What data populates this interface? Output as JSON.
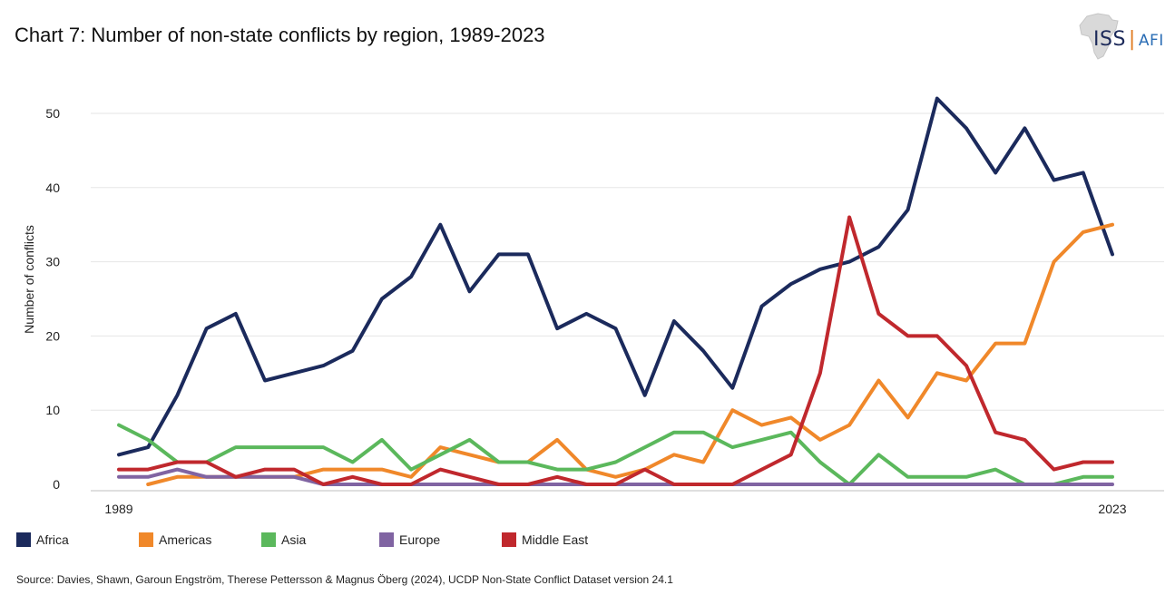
{
  "title": "Chart 7: Number of non-state conflicts by region, 1989-2023",
  "logo": {
    "text_iss": "ISS",
    "separator": "|",
    "text_afi": "AFI",
    "icon": "africa-map-icon"
  },
  "source": "Source:  Davies, Shawn, Garoun Engström, Therese Pettersson & Magnus Öberg (2024), UCDP Non-State Conflict Dataset version 24.1",
  "chart_data": {
    "type": "line",
    "title": "Chart 7: Number of non-state conflicts by region, 1989-2023",
    "xlabel": "",
    "ylabel": "Number of conflicts",
    "x": [
      1989,
      1990,
      1991,
      1992,
      1993,
      1994,
      1995,
      1996,
      1997,
      1998,
      1999,
      2000,
      2001,
      2002,
      2003,
      2004,
      2005,
      2006,
      2007,
      2008,
      2009,
      2010,
      2011,
      2012,
      2013,
      2014,
      2015,
      2016,
      2017,
      2018,
      2019,
      2020,
      2021,
      2022,
      2023
    ],
    "x_tick_labels": [
      "1989",
      "2023"
    ],
    "y_ticks": [
      0,
      10,
      20,
      30,
      40,
      50
    ],
    "ylim": [
      0,
      53
    ],
    "grid": true,
    "legend_position": "bottom",
    "series": [
      {
        "name": "Africa",
        "color": "#1b2a5c",
        "values": [
          4,
          5,
          12,
          21,
          23,
          14,
          15,
          16,
          18,
          25,
          28,
          35,
          26,
          31,
          31,
          21,
          23,
          21,
          12,
          22,
          18,
          13,
          24,
          27,
          29,
          30,
          32,
          37,
          52,
          48,
          42,
          48,
          41,
          42,
          31
        ]
      },
      {
        "name": "Americas",
        "color": "#f0882a",
        "values": [
          null,
          0,
          1,
          1,
          1,
          1,
          1,
          2,
          2,
          2,
          1,
          5,
          4,
          3,
          3,
          6,
          2,
          1,
          2,
          4,
          3,
          10,
          8,
          9,
          6,
          8,
          14,
          9,
          15,
          14,
          19,
          19,
          30,
          34,
          35
        ]
      },
      {
        "name": "Asia",
        "color": "#5bb85c",
        "values": [
          8,
          6,
          3,
          3,
          5,
          5,
          5,
          5,
          3,
          6,
          2,
          4,
          6,
          3,
          3,
          2,
          2,
          3,
          5,
          7,
          7,
          5,
          6,
          7,
          3,
          0,
          4,
          1,
          1,
          1,
          2,
          0,
          0,
          1,
          1
        ]
      },
      {
        "name": "Europe",
        "color": "#8064a2",
        "values": [
          1,
          1,
          2,
          1,
          1,
          1,
          1,
          0,
          0,
          0,
          0,
          0,
          0,
          0,
          0,
          0,
          0,
          0,
          0,
          0,
          0,
          0,
          0,
          0,
          0,
          0,
          0,
          0,
          0,
          0,
          0,
          0,
          0,
          0,
          0
        ]
      },
      {
        "name": "Middle East",
        "color": "#c0282d",
        "values": [
          2,
          2,
          3,
          3,
          1,
          2,
          2,
          0,
          1,
          0,
          0,
          2,
          1,
          0,
          0,
          1,
          0,
          0,
          2,
          0,
          0,
          0,
          2,
          4,
          15,
          36,
          23,
          20,
          20,
          16,
          7,
          6,
          2,
          3,
          3
        ]
      }
    ]
  }
}
